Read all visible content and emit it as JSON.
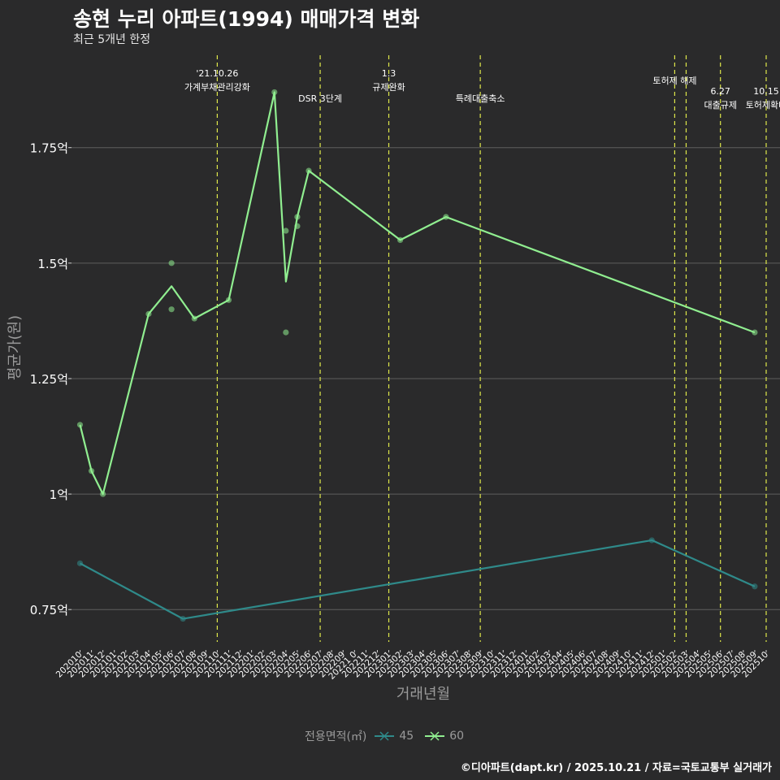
{
  "header": {
    "title": "송현 누리 아파트(1994) 매매가격 변화",
    "subtitle": "최근 5개년 한정"
  },
  "caption": "©디아파트(dapt.kr) / 2025.10.21 / 자료=국토교통부 실거래가",
  "legend": {
    "title": "전용면적(㎡)",
    "items": [
      {
        "label": "45",
        "color": "#2f8a8a"
      },
      {
        "label": "60",
        "color": "#90ee90"
      }
    ]
  },
  "chart_data": {
    "type": "line",
    "title": "송현 누리 아파트(1994) 매매가격 변화",
    "subtitle": "최근 5개년 한정",
    "xlabel": "거래년월",
    "ylabel": "평균가(원)",
    "ylim": [
      0.68,
      1.95
    ],
    "y_ticks": [
      {
        "value": 0.75,
        "label": "0.75억"
      },
      {
        "value": 1.0,
        "label": "1억"
      },
      {
        "value": 1.25,
        "label": "1.25억"
      },
      {
        "value": 1.5,
        "label": "1.5억"
      },
      {
        "value": 1.75,
        "label": "1.75억"
      }
    ],
    "x_start": "2020-10",
    "x_end": "2025-10",
    "x_tick_labels": [
      "202010",
      "202011",
      "202012",
      "202101",
      "202102",
      "202103",
      "202104",
      "202105",
      "202106",
      "202107",
      "202108",
      "202109",
      "202110",
      "202111",
      "202112",
      "202201",
      "202202",
      "202203",
      "202204",
      "202205",
      "202206",
      "202207",
      "202208",
      "202209",
      "20221 0",
      "202211",
      "202212",
      "202301",
      "202302",
      "202303",
      "202304",
      "202305",
      "202306",
      "202307",
      "202308",
      "202309",
      "202310",
      "202311",
      "202312",
      "202401",
      "202402",
      "202403",
      "202404",
      "202405",
      "202406",
      "202407",
      "202408",
      "202409",
      "202410",
      "202411",
      "202412",
      "202501",
      "202502",
      "202503",
      "202504",
      "202505",
      "202506",
      "202507",
      "202508",
      "202509",
      "202510"
    ],
    "series": [
      {
        "name": "45",
        "color": "#2f8a8a",
        "line": [
          {
            "month": "2020-10",
            "value": 0.85
          },
          {
            "month": "2021-07",
            "value": 0.73
          },
          {
            "month": "2024-12",
            "value": 0.9
          },
          {
            "month": "2025-09",
            "value": 0.8
          }
        ],
        "points": [
          {
            "month": "2020-10",
            "value": 0.85
          },
          {
            "month": "2021-07",
            "value": 0.73
          },
          {
            "month": "2024-12",
            "value": 0.9
          },
          {
            "month": "2025-09",
            "value": 0.8
          }
        ]
      },
      {
        "name": "60",
        "color": "#90ee90",
        "line": [
          {
            "month": "2020-10",
            "value": 1.15
          },
          {
            "month": "2020-11",
            "value": 1.05
          },
          {
            "month": "2020-12",
            "value": 1.0
          },
          {
            "month": "2021-04",
            "value": 1.39
          },
          {
            "month": "2021-06",
            "value": 1.45
          },
          {
            "month": "2021-08",
            "value": 1.38
          },
          {
            "month": "2021-11",
            "value": 1.42
          },
          {
            "month": "2022-03",
            "value": 1.87
          },
          {
            "month": "2022-04",
            "value": 1.46
          },
          {
            "month": "2022-05",
            "value": 1.6
          },
          {
            "month": "2022-06",
            "value": 1.7
          },
          {
            "month": "2023-02",
            "value": 1.55
          },
          {
            "month": "2023-06",
            "value": 1.6
          },
          {
            "month": "2025-09",
            "value": 1.35
          }
        ],
        "points": [
          {
            "month": "2020-10",
            "value": 1.15
          },
          {
            "month": "2020-11",
            "value": 1.05
          },
          {
            "month": "2020-12",
            "value": 1.0
          },
          {
            "month": "2021-04",
            "value": 1.39
          },
          {
            "month": "2021-06",
            "value": 1.5
          },
          {
            "month": "2021-06",
            "value": 1.4
          },
          {
            "month": "2021-08",
            "value": 1.38
          },
          {
            "month": "2021-11",
            "value": 1.42
          },
          {
            "month": "2022-03",
            "value": 1.87
          },
          {
            "month": "2022-04",
            "value": 1.57
          },
          {
            "month": "2022-04",
            "value": 1.35
          },
          {
            "month": "2022-05",
            "value": 1.6
          },
          {
            "month": "2022-05",
            "value": 1.58
          },
          {
            "month": "2022-06",
            "value": 1.7
          },
          {
            "month": "2023-02",
            "value": 1.55
          },
          {
            "month": "2023-06",
            "value": 1.6
          },
          {
            "month": "2025-09",
            "value": 1.35
          }
        ]
      }
    ],
    "events": [
      {
        "month": "2021-10",
        "line1": "'21.10.26",
        "line2": "가계부채관리강화"
      },
      {
        "month": "2022-07",
        "line1": "",
        "line2": "DSR 3단계"
      },
      {
        "month": "2023-01",
        "line1": "1.3",
        "line2": "규제완화"
      },
      {
        "month": "2023-09",
        "line1": "",
        "line2": "특례대출축소"
      },
      {
        "month": "2025-02",
        "line1": "",
        "line2": "토허제 해제"
      },
      {
        "month": "2025-03",
        "line1": "",
        "line2": ""
      },
      {
        "month": "2025-06",
        "line1": "6.27",
        "line2": "대출규제"
      },
      {
        "month": "2025-10",
        "line1": "10.15",
        "line2": "토허제확대"
      }
    ]
  }
}
